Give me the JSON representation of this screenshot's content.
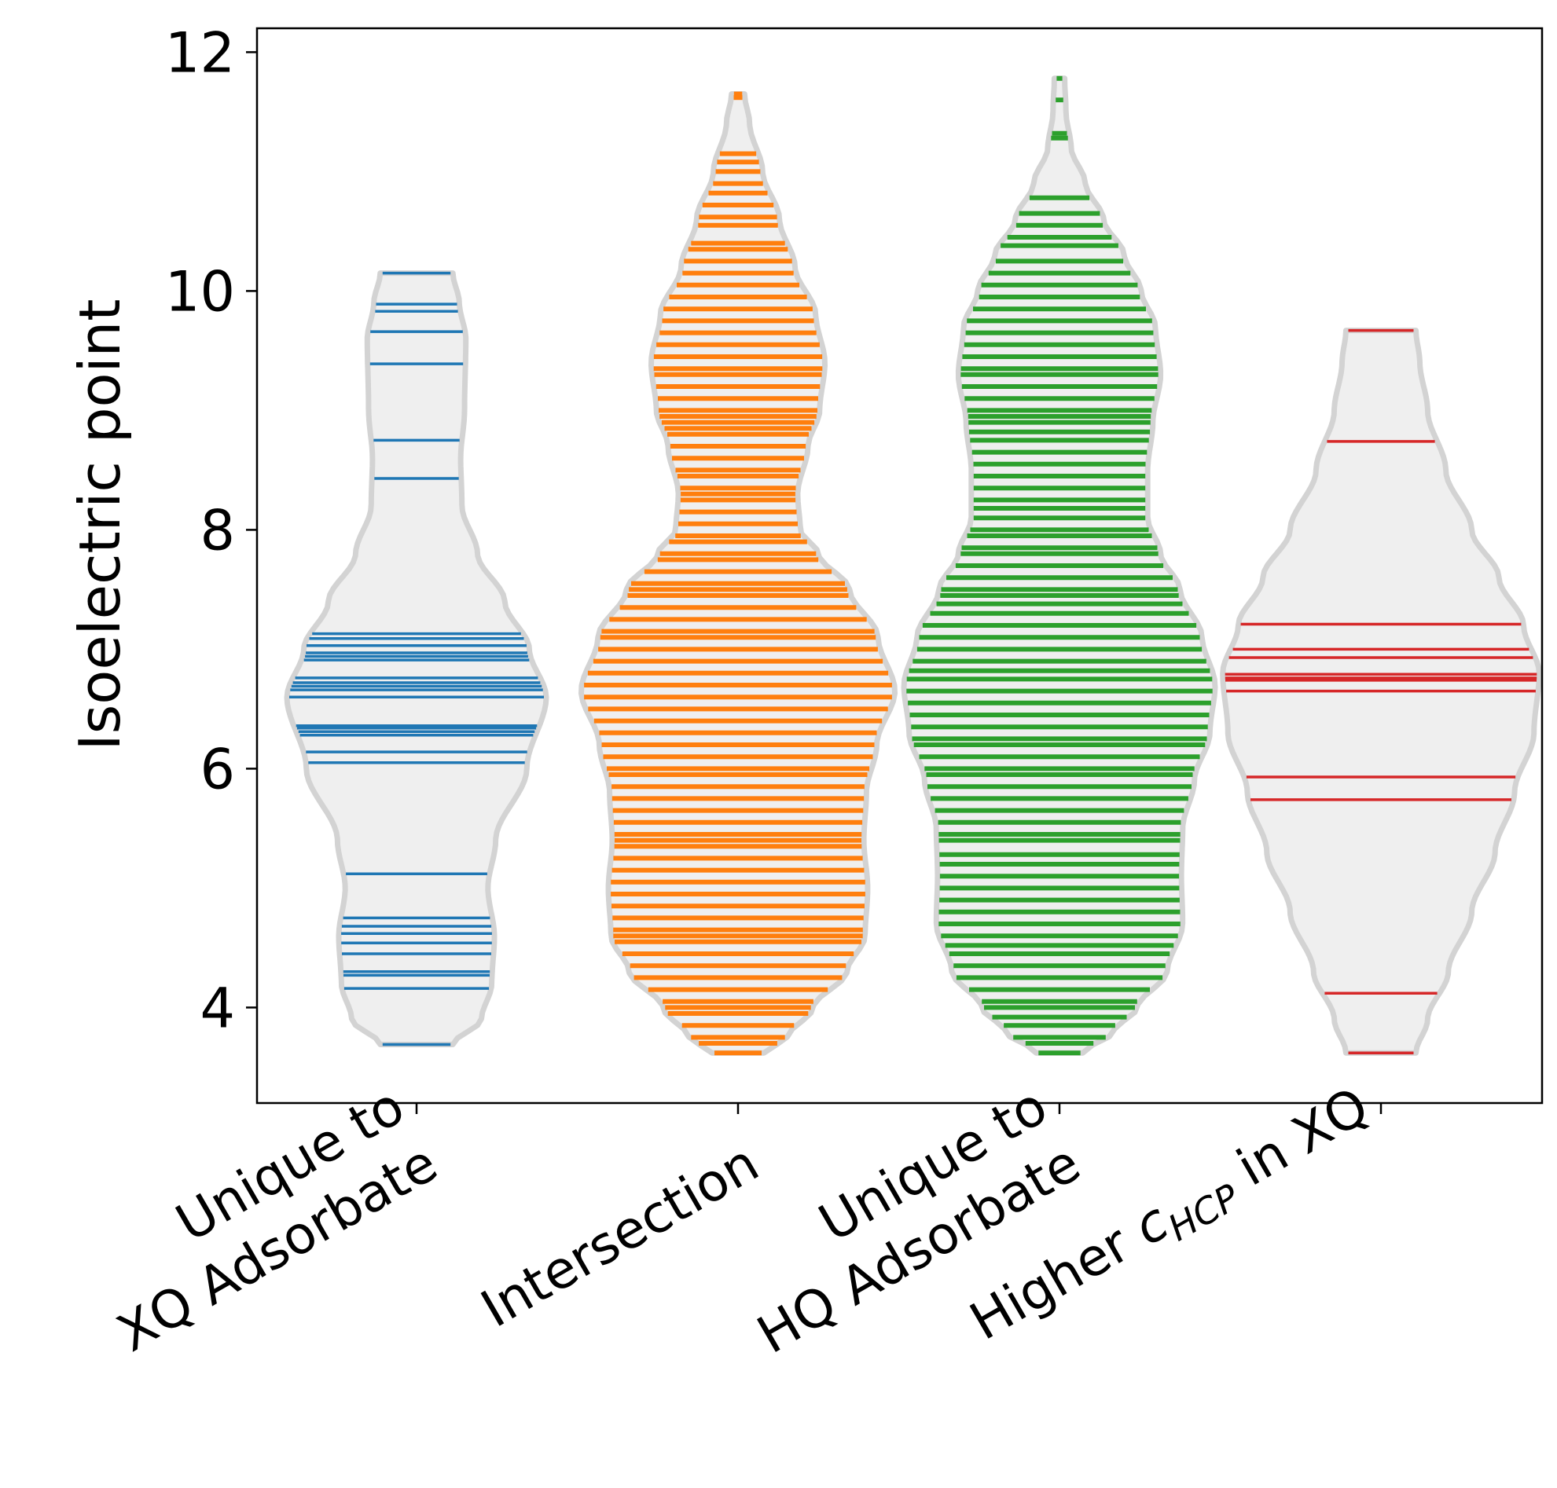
{
  "chart_data": {
    "type": "violin",
    "title": "",
    "ylabel": "Isoelectric point",
    "xlabel": "",
    "ylim": [
      3.2,
      12.2
    ],
    "yticks": [
      "4",
      "6",
      "8",
      "10",
      "12"
    ],
    "grid": false,
    "legend": "none",
    "categories": [
      {
        "lines": [
          "Unique to",
          "XQ Adsorbate"
        ],
        "sub": null
      },
      {
        "lines": [
          "Intersection"
        ],
        "sub": null
      },
      {
        "lines": [
          "Unique to",
          "HQ Adsorbate"
        ],
        "sub": null
      },
      {
        "lines": [
          "Higher c",
          " in XQ"
        ],
        "sub": "HCP",
        "italic_c": true
      }
    ],
    "series": [
      {
        "color": "#1f77b4",
        "range": [
          3.69,
          10.15
        ],
        "values": [
          10.15,
          9.89,
          9.83,
          9.66,
          9.39,
          8.75,
          8.43,
          7.13,
          7.09,
          7.03,
          6.97,
          6.94,
          6.91,
          6.76,
          6.72,
          6.69,
          6.66,
          6.6,
          6.36,
          6.34,
          6.31,
          6.28,
          6.14,
          6.05,
          5.12,
          4.75,
          4.68,
          4.62,
          4.54,
          4.45,
          4.3,
          4.27,
          4.16,
          3.69
        ],
        "density": [
          [
            3.69,
            0.28
          ],
          [
            3.9,
            0.5
          ],
          [
            4.2,
            0.58
          ],
          [
            4.6,
            0.6
          ],
          [
            5.0,
            0.55
          ],
          [
            5.4,
            0.61
          ],
          [
            6.0,
            0.85
          ],
          [
            6.6,
            1.0
          ],
          [
            7.0,
            0.87
          ],
          [
            7.4,
            0.68
          ],
          [
            7.8,
            0.47
          ],
          [
            8.2,
            0.35
          ],
          [
            8.6,
            0.34
          ],
          [
            9.0,
            0.37
          ],
          [
            9.6,
            0.38
          ],
          [
            9.9,
            0.33
          ],
          [
            10.15,
            0.28
          ]
        ]
      },
      {
        "color": "#ff7f0e",
        "range": [
          3.62,
          11.65
        ],
        "values": [
          11.65,
          11.62,
          11.15,
          11.08,
          11.0,
          10.9,
          10.82,
          10.72,
          10.62,
          10.55,
          10.4,
          10.35,
          10.25,
          10.15,
          10.05,
          9.95,
          9.85,
          9.75,
          9.65,
          9.55,
          9.45,
          9.35,
          9.3,
          9.2,
          9.1,
          9.0,
          8.95,
          8.9,
          8.85,
          8.8,
          8.7,
          8.6,
          8.5,
          8.45,
          8.35,
          8.3,
          8.25,
          8.15,
          8.05,
          7.95,
          7.9,
          7.8,
          7.75,
          7.65,
          7.55,
          7.5,
          7.45,
          7.35,
          7.25,
          7.15,
          7.1,
          7.0,
          6.9,
          6.8,
          6.7,
          6.6,
          6.5,
          6.4,
          6.3,
          6.2,
          6.1,
          6.0,
          5.95,
          5.85,
          5.75,
          5.65,
          5.55,
          5.45,
          5.4,
          5.35,
          5.25,
          5.15,
          5.05,
          4.95,
          4.85,
          4.75,
          4.65,
          4.6,
          4.55,
          4.45,
          4.35,
          4.25,
          4.15,
          4.05,
          4.0,
          3.95,
          3.85,
          3.75,
          3.7,
          3.62
        ],
        "density": [
          [
            3.62,
            0.2
          ],
          [
            3.75,
            0.38
          ],
          [
            4.0,
            0.58
          ],
          [
            4.3,
            0.84
          ],
          [
            4.6,
            0.98
          ],
          [
            5.0,
            1.0
          ],
          [
            5.4,
            0.97
          ],
          [
            5.8,
            0.99
          ],
          [
            6.2,
            1.07
          ],
          [
            6.65,
            1.21
          ],
          [
            7.1,
            1.08
          ],
          [
            7.5,
            0.86
          ],
          [
            7.8,
            0.62
          ],
          [
            8.0,
            0.48
          ],
          [
            8.3,
            0.46
          ],
          [
            8.7,
            0.54
          ],
          [
            9.0,
            0.63
          ],
          [
            9.4,
            0.67
          ],
          [
            9.8,
            0.6
          ],
          [
            10.2,
            0.44
          ],
          [
            10.6,
            0.32
          ],
          [
            11.0,
            0.19
          ],
          [
            11.4,
            0.09
          ],
          [
            11.65,
            0.05
          ]
        ]
      },
      {
        "color": "#2ca02c",
        "range": [
          3.62,
          11.78
        ],
        "values": [
          11.78,
          11.6,
          11.32,
          11.28,
          10.78,
          10.65,
          10.55,
          10.45,
          10.38,
          10.25,
          10.15,
          10.05,
          9.95,
          9.85,
          9.75,
          9.65,
          9.55,
          9.45,
          9.35,
          9.3,
          9.2,
          9.1,
          9.0,
          8.95,
          8.9,
          8.82,
          8.75,
          8.65,
          8.55,
          8.45,
          8.35,
          8.25,
          8.18,
          8.1,
          8.0,
          7.95,
          7.85,
          7.8,
          7.7,
          7.6,
          7.5,
          7.45,
          7.38,
          7.3,
          7.2,
          7.1,
          7.0,
          6.9,
          6.82,
          6.75,
          6.65,
          6.55,
          6.45,
          6.35,
          6.25,
          6.2,
          6.1,
          6.0,
          5.95,
          5.85,
          5.75,
          5.65,
          5.55,
          5.45,
          5.4,
          5.28,
          5.2,
          5.1,
          5.0,
          4.9,
          4.8,
          4.7,
          4.6,
          4.52,
          4.45,
          4.35,
          4.25,
          4.15,
          4.05,
          4.0,
          3.92,
          3.85,
          3.75,
          3.7,
          3.62
        ],
        "density": [
          [
            3.62,
            0.18
          ],
          [
            3.8,
            0.42
          ],
          [
            4.0,
            0.6
          ],
          [
            4.3,
            0.83
          ],
          [
            4.7,
            0.95
          ],
          [
            5.1,
            0.94
          ],
          [
            5.5,
            0.95
          ],
          [
            5.9,
            1.04
          ],
          [
            6.3,
            1.16
          ],
          [
            6.7,
            1.2
          ],
          [
            7.1,
            1.1
          ],
          [
            7.5,
            0.93
          ],
          [
            7.8,
            0.78
          ],
          [
            8.1,
            0.68
          ],
          [
            8.5,
            0.68
          ],
          [
            8.9,
            0.72
          ],
          [
            9.3,
            0.78
          ],
          [
            9.7,
            0.74
          ],
          [
            10.0,
            0.63
          ],
          [
            10.3,
            0.5
          ],
          [
            10.6,
            0.34
          ],
          [
            10.9,
            0.2
          ],
          [
            11.2,
            0.09
          ],
          [
            11.5,
            0.05
          ],
          [
            11.78,
            0.04
          ]
        ]
      },
      {
        "color": "#d62728",
        "range": [
          3.62,
          9.67
        ],
        "values": [
          9.67,
          8.74,
          7.21,
          7.0,
          6.93,
          6.79,
          6.76,
          6.74,
          6.65,
          5.93,
          5.74,
          4.12,
          3.62
        ],
        "density": [
          [
            3.62,
            0.27
          ],
          [
            3.9,
            0.36
          ],
          [
            4.3,
            0.52
          ],
          [
            4.8,
            0.7
          ],
          [
            5.3,
            0.88
          ],
          [
            5.8,
            1.03
          ],
          [
            6.3,
            1.18
          ],
          [
            6.8,
            1.22
          ],
          [
            7.2,
            1.1
          ],
          [
            7.6,
            0.91
          ],
          [
            8.0,
            0.7
          ],
          [
            8.5,
            0.5
          ],
          [
            9.0,
            0.36
          ],
          [
            9.4,
            0.3
          ],
          [
            9.67,
            0.27
          ]
        ]
      }
    ]
  }
}
